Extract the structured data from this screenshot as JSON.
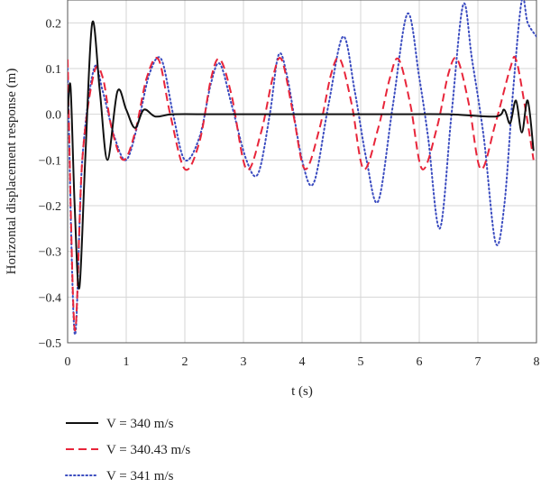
{
  "chart_data": {
    "type": "line",
    "xlabel": "t (s)",
    "ylabel": "Horizontal displacement response (m)",
    "xlim": [
      0,
      8
    ],
    "ylim": [
      -0.5,
      0.25
    ],
    "x_ticks": [
      "0",
      "1",
      "2",
      "3",
      "4",
      "5",
      "6",
      "7",
      "8"
    ],
    "y_ticks": [
      "0.2",
      "0.1",
      "0.0",
      "−0.1",
      "−0.2",
      "−0.3",
      "−0.4",
      "−0.5"
    ],
    "grid": true,
    "legend_position": "bottom-left",
    "series": [
      {
        "name": "V = 340 m/s",
        "color": "#111111",
        "style": "solid",
        "points": [
          [
            0,
            0
          ],
          [
            0.05,
            0.06
          ],
          [
            0.12,
            -0.2
          ],
          [
            0.2,
            -0.38
          ],
          [
            0.3,
            -0.1
          ],
          [
            0.42,
            0.2
          ],
          [
            0.55,
            0.05
          ],
          [
            0.68,
            -0.1
          ],
          [
            0.85,
            0.05
          ],
          [
            1.0,
            0.01
          ],
          [
            1.15,
            -0.03
          ],
          [
            1.3,
            0.01
          ],
          [
            1.5,
            -0.005
          ],
          [
            1.8,
            0.0
          ],
          [
            2.5,
            0.0
          ],
          [
            3.5,
            0.0
          ],
          [
            4.5,
            0.0
          ],
          [
            5.5,
            0.0
          ],
          [
            6.5,
            0.0
          ],
          [
            7.3,
            -0.005
          ],
          [
            7.45,
            0.01
          ],
          [
            7.55,
            -0.02
          ],
          [
            7.65,
            0.03
          ],
          [
            7.75,
            -0.04
          ],
          [
            7.85,
            0.03
          ],
          [
            7.95,
            -0.08
          ]
        ]
      },
      {
        "name": "V = 340.43 m/s",
        "color": "#e8253a",
        "style": "dashed",
        "points": [
          [
            0,
            0.12
          ],
          [
            0.12,
            -0.47
          ],
          [
            0.25,
            -0.1
          ],
          [
            0.45,
            0.09
          ],
          [
            0.6,
            0.08
          ],
          [
            0.75,
            -0.03
          ],
          [
            0.95,
            -0.1
          ],
          [
            1.15,
            -0.04
          ],
          [
            1.35,
            0.08
          ],
          [
            1.55,
            0.12
          ],
          [
            1.75,
            0.0
          ],
          [
            2.0,
            -0.12
          ],
          [
            2.25,
            -0.06
          ],
          [
            2.45,
            0.08
          ],
          [
            2.6,
            0.12
          ],
          [
            2.8,
            0.04
          ],
          [
            3.05,
            -0.12
          ],
          [
            3.3,
            -0.04
          ],
          [
            3.5,
            0.08
          ],
          [
            3.65,
            0.12
          ],
          [
            3.85,
            0.0
          ],
          [
            4.05,
            -0.12
          ],
          [
            4.3,
            -0.03
          ],
          [
            4.5,
            0.09
          ],
          [
            4.65,
            0.12
          ],
          [
            4.85,
            0.02
          ],
          [
            5.05,
            -0.12
          ],
          [
            5.3,
            -0.03
          ],
          [
            5.5,
            0.08
          ],
          [
            5.65,
            0.12
          ],
          [
            5.85,
            0.02
          ],
          [
            6.05,
            -0.12
          ],
          [
            6.3,
            -0.03
          ],
          [
            6.5,
            0.09
          ],
          [
            6.65,
            0.12
          ],
          [
            6.85,
            0.02
          ],
          [
            7.05,
            -0.12
          ],
          [
            7.3,
            -0.02
          ],
          [
            7.55,
            0.1
          ],
          [
            7.65,
            0.12
          ],
          [
            7.8,
            0.02
          ],
          [
            7.95,
            -0.1
          ]
        ]
      },
      {
        "name": "V = 341 m/s",
        "color": "#3b4cc0",
        "style": "dotted",
        "points": [
          [
            0,
            0.1
          ],
          [
            0.12,
            -0.48
          ],
          [
            0.25,
            -0.1
          ],
          [
            0.45,
            0.1
          ],
          [
            0.6,
            0.05
          ],
          [
            0.8,
            -0.05
          ],
          [
            1.0,
            -0.1
          ],
          [
            1.2,
            -0.02
          ],
          [
            1.4,
            0.09
          ],
          [
            1.6,
            0.12
          ],
          [
            1.8,
            0.0
          ],
          [
            2.0,
            -0.1
          ],
          [
            2.25,
            -0.05
          ],
          [
            2.45,
            0.07
          ],
          [
            2.6,
            0.11
          ],
          [
            2.8,
            0.02
          ],
          [
            3.05,
            -0.1
          ],
          [
            3.25,
            -0.13
          ],
          [
            3.45,
            0.0
          ],
          [
            3.6,
            0.13
          ],
          [
            3.75,
            0.08
          ],
          [
            4.0,
            -0.1
          ],
          [
            4.2,
            -0.15
          ],
          [
            4.45,
            0.02
          ],
          [
            4.7,
            0.17
          ],
          [
            4.9,
            0.05
          ],
          [
            5.1,
            -0.1
          ],
          [
            5.3,
            -0.19
          ],
          [
            5.55,
            0.02
          ],
          [
            5.8,
            0.22
          ],
          [
            6.0,
            0.08
          ],
          [
            6.15,
            -0.05
          ],
          [
            6.35,
            -0.25
          ],
          [
            6.55,
            0.0
          ],
          [
            6.75,
            0.24
          ],
          [
            6.9,
            0.12
          ],
          [
            7.1,
            -0.05
          ],
          [
            7.3,
            -0.28
          ],
          [
            7.45,
            -0.2
          ],
          [
            7.6,
            0.05
          ],
          [
            7.75,
            0.25
          ],
          [
            7.85,
            0.2
          ],
          [
            8.0,
            0.17
          ]
        ]
      }
    ]
  }
}
